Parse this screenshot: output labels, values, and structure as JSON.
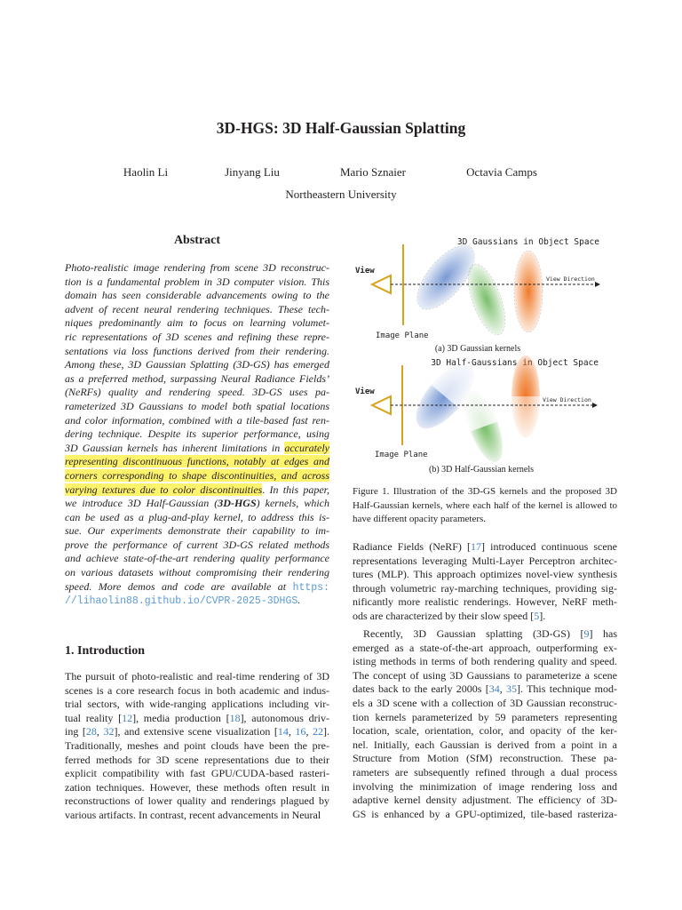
{
  "paper": {
    "title": "3D-HGS: 3D Half-Gaussian Splatting",
    "authors": [
      "Haolin Li",
      "Jinyang Liu",
      "Mario Sznaier",
      "Octavia Camps"
    ],
    "affiliation": "Northeastern University"
  },
  "abstract": {
    "heading": "Abstract",
    "lines": [
      [
        "Photo-realistic image rendering from scene 3D reconstruc-"
      ],
      [
        "tion is a fundamental problem in 3D computer vision. This"
      ],
      [
        "domain has seen considerable advancements owing to the"
      ],
      [
        "advent of recent neural rendering techniques. These tech-"
      ],
      [
        "niques predominantly aim to focus on learning volumet-"
      ],
      [
        "ric representations of 3D scenes and refining these repre-"
      ],
      [
        "sentations via loss functions derived from their rendering."
      ],
      [
        "Among these, 3D Gaussian Splatting (3D-GS) has emerged"
      ],
      [
        "as a preferred method, surpassing Neural Radiance Fields’"
      ],
      [
        "(NeRFs) quality and rendering speed.  3D-GS uses pa-"
      ],
      [
        "rameterized 3D Gaussians to model both spatial locations"
      ],
      [
        "and color information, combined with a tile-based fast ren-"
      ],
      [
        "dering technique. Despite its superior performance, using"
      ],
      [
        "3D Gaussian kernels has inherent limitations in ",
        {
          "h": "accurately"
        }
      ],
      [
        {
          "h": "representing discontinuous functions, notably at edges and"
        }
      ],
      [
        {
          "h": "corners corresponding to shape discontinuities, and across"
        }
      ],
      [
        {
          "h": "varying textures due to color discontinuities"
        },
        ". In this paper,"
      ],
      [
        "we introduce 3D Half-Gaussian (",
        {
          "b": "3D-HGS"
        },
        ") kernels, which"
      ],
      [
        "can be used as a plug-and-play kernel, to address this is-"
      ],
      [
        "sue.  Our experiments demonstrate their capability to im-"
      ],
      [
        "prove the performance of current 3D-GS related methods"
      ],
      [
        "and achieve state-of-the-art rendering quality performance"
      ],
      [
        "on various datasets without compromising their rendering"
      ],
      [
        "speed.  More demos and code are available at ",
        {
          "l": "https:"
        }
      ],
      [
        {
          "l": "//lihaolin88.github.io/CVPR-2025-3DHGS"
        },
        "."
      ]
    ]
  },
  "introduction": {
    "heading": "1. Introduction",
    "lines": [
      [
        "The pursuit of photo-realistic and real-time rendering of 3D"
      ],
      [
        "scenes is a core research focus in both academic and indus-"
      ],
      [
        "trial sectors, with wide-ranging applications including vir-"
      ],
      [
        "tual reality [",
        {
          "c": "12"
        },
        "], media production [",
        {
          "c": "18"
        },
        "], autonomous driv-"
      ],
      [
        "ing [",
        {
          "c": "28"
        },
        ", ",
        {
          "c": "32"
        },
        "], and extensive scene visualization [",
        {
          "c": "14"
        },
        ", ",
        {
          "c": "16"
        },
        ", ",
        {
          "c": "22"
        },
        "]."
      ],
      [
        "Traditionally, meshes and point clouds have been the pre-"
      ],
      [
        "ferred methods for 3D scene representations due to their"
      ],
      [
        "explicit compatibility with fast GPU/CUDA-based rasteri-"
      ],
      [
        "zation techniques. However, these methods often result in"
      ],
      [
        "reconstructions of lower quality and renderings plagued by"
      ],
      [
        "various artifacts. In contrast, recent advancements in Neural"
      ]
    ],
    "right_para1": [
      [
        "Radiance Fields (NeRF) [",
        {
          "c": "17"
        },
        "] introduced continuous scene"
      ],
      [
        "representations leveraging Multi-Layer Perceptron architec-"
      ],
      [
        "tures (MLP). This approach optimizes novel-view synthesis"
      ],
      [
        "through volumetric ray-marching techniques, providing sig-"
      ],
      [
        "nificantly more realistic renderings. However, NeRF meth-"
      ],
      [
        "ods are characterized by their slow speed [",
        {
          "c": "5"
        },
        "]."
      ]
    ],
    "right_para2": [
      [
        "Recently, 3D Gaussian splatting (3D-GS) [",
        {
          "c": "9"
        },
        "] has"
      ],
      [
        "emerged as a state-of-the-art approach, outperforming ex-"
      ],
      [
        "isting methods in terms of both rendering quality and speed."
      ],
      [
        "The concept of using 3D Gaussians to parameterize a scene"
      ],
      [
        "dates back to the early 2000s [",
        {
          "c": "34"
        },
        ", ",
        {
          "c": "35"
        },
        "]. This technique mod-"
      ],
      [
        "els a 3D scene with a collection of 3D Gaussian reconstruc-"
      ],
      [
        "tion kernels parameterized by 59 parameters representing"
      ],
      [
        "location, scale, orientation, color, and opacity of the ker-"
      ],
      [
        "nel.  Initially, each Gaussian is derived from a point in a"
      ],
      [
        "Structure from Motion (SfM) reconstruction.  These pa-"
      ],
      [
        "rameters are subsequently refined through a dual process"
      ],
      [
        "involving the minimization of image rendering loss and"
      ],
      [
        "adaptive kernel density adjustment.  The efficiency of 3D-"
      ],
      [
        "GS is enhanced by a GPU-optimized, tile-based rasteriza-"
      ]
    ]
  },
  "figure": {
    "panel_a": {
      "title": "3D Gaussians in Object Space",
      "view": "View",
      "view_direction": "View Direction",
      "image_plane": "Image Plane",
      "caption": "(a) 3D Gaussian kernels"
    },
    "panel_b": {
      "title": "3D Half-Gaussians in Object Space",
      "view": "View",
      "view_direction": "View Direction",
      "image_plane": "Image Plane",
      "caption": "(b) 3D Half-Gaussian kernels"
    },
    "caption_lines": [
      "Figure 1.  Illustration of the 3D-GS kernels and the proposed 3D",
      "Half-Gaussian kernels, where each half of the kernel is allowed to",
      "have different opacity parameters."
    ],
    "colors": {
      "camera": "#d9a21b",
      "blue": "#6b8fd0",
      "green": "#6bb85a",
      "orange": "#f07a2a"
    }
  },
  "colors": {
    "highlight": "#fff36b",
    "citation": "#3b7fc4",
    "link": "#5b9bd5"
  }
}
